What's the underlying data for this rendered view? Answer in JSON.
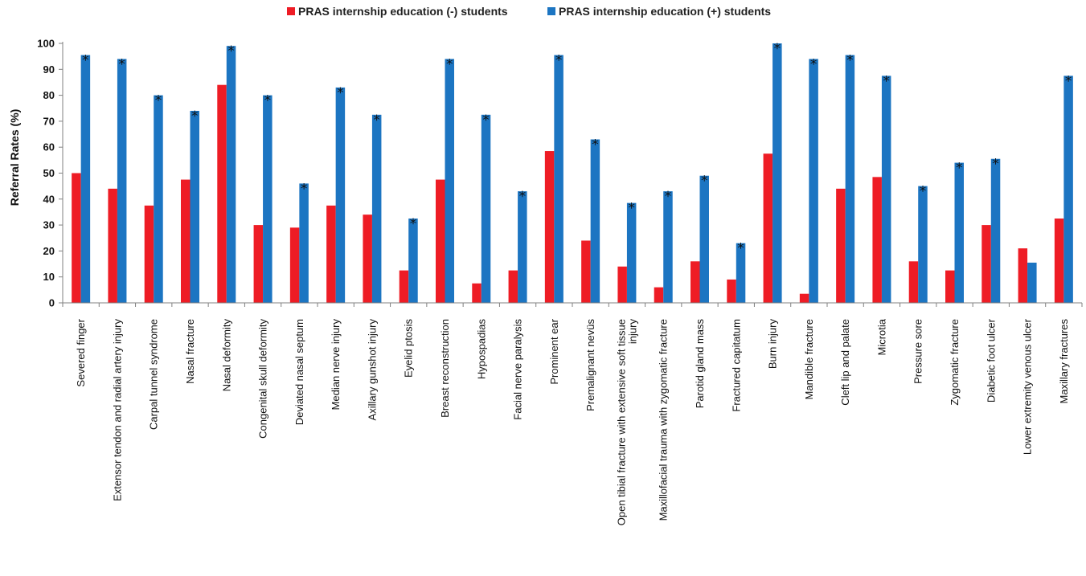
{
  "chart_data": {
    "type": "bar",
    "ylabel": "Referral Rates (%)",
    "ylim": [
      0,
      100
    ],
    "yticks": [
      0,
      10,
      20,
      30,
      40,
      50,
      60,
      70,
      80,
      90,
      100
    ],
    "grid": false,
    "legend_position": "top",
    "categories": [
      "Severed finger",
      "Extensor tendon and radial artery injury",
      "Carpal tunnel syndrome",
      "Nasal fracture",
      "Nasal deformity",
      "Congenital skull deformity",
      "Deviated nasal septum",
      "Median nerve injury",
      "Axillary gunshot injury",
      "Eyelid ptosis",
      "Breast reconstruction",
      "Hypospadias",
      "Facial nerve paralysis",
      "Prominent ear",
      "Premalignant nevüs",
      "Open tibial fracture with extensive soft tissue injury",
      "Maxillofacial trauma with zygomatic fracture",
      "Parotid gland mass",
      "Fractured capitatum",
      "Burn injury",
      "Mandible fracture",
      "Cleft lip and palate",
      "Microtia",
      "Pressure sore",
      "Zygomatic fracture",
      "Diabetic foot ulcer",
      "Lower extremity venous ulcer",
      "Maxillary fractures"
    ],
    "category_lines": [
      [
        "Severed finger"
      ],
      [
        "Extensor tendon and radial artery injury"
      ],
      [
        "Carpal tunnel syndrome"
      ],
      [
        "Nasal fracture"
      ],
      [
        "Nasal deformity"
      ],
      [
        "Congenital skull deformity"
      ],
      [
        "Deviated nasal septum"
      ],
      [
        "Median nerve injury"
      ],
      [
        "Axillary gunshot injury"
      ],
      [
        "Eyelid ptosis"
      ],
      [
        "Breast reconstruction"
      ],
      [
        "Hypospadias"
      ],
      [
        "Facial nerve paralysis"
      ],
      [
        "Prominent ear"
      ],
      [
        "Premalignant nevüs"
      ],
      [
        "Open tibial fracture with extensive soft tissue",
        "injury"
      ],
      [
        "Maxillofacial trauma with zygomatic fracture"
      ],
      [
        "Parotid gland mass"
      ],
      [
        "Fractured capitatum"
      ],
      [
        "Burn injury"
      ],
      [
        "Mandible fracture"
      ],
      [
        "Cleft lip and palate"
      ],
      [
        "Microtia"
      ],
      [
        "Pressure sore"
      ],
      [
        "Zygomatic fracture"
      ],
      [
        "Diabetic foot ulcer"
      ],
      [
        "Lower extremity venous ulcer"
      ],
      [
        "Maxillary fractures"
      ]
    ],
    "series": [
      {
        "name": "PRAS internship education (-) students",
        "color": "#ee1c25",
        "values": [
          50,
          44,
          37.5,
          47.5,
          84,
          30,
          29,
          37.5,
          34,
          12.5,
          47.5,
          7.5,
          12.5,
          58.5,
          24,
          14,
          6,
          16,
          9,
          57.5,
          3.5,
          44,
          48.5,
          16,
          12.5,
          30,
          21,
          32.5
        ]
      },
      {
        "name": "PRAS internship education (+) students",
        "color": "#1c75c2",
        "values": [
          95.5,
          94,
          80,
          74,
          99,
          80,
          46,
          83,
          72.5,
          32.5,
          94,
          72.5,
          43,
          95.5,
          63,
          38.5,
          43,
          49,
          23,
          100,
          94,
          95.5,
          87.5,
          45,
          54,
          55.5,
          15.5,
          87.5
        ]
      }
    ],
    "significant": [
      true,
      true,
      true,
      true,
      true,
      true,
      true,
      true,
      true,
      true,
      true,
      true,
      true,
      true,
      true,
      true,
      true,
      true,
      true,
      true,
      true,
      true,
      true,
      true,
      true,
      true,
      false,
      true
    ],
    "significance_marker": "*"
  }
}
